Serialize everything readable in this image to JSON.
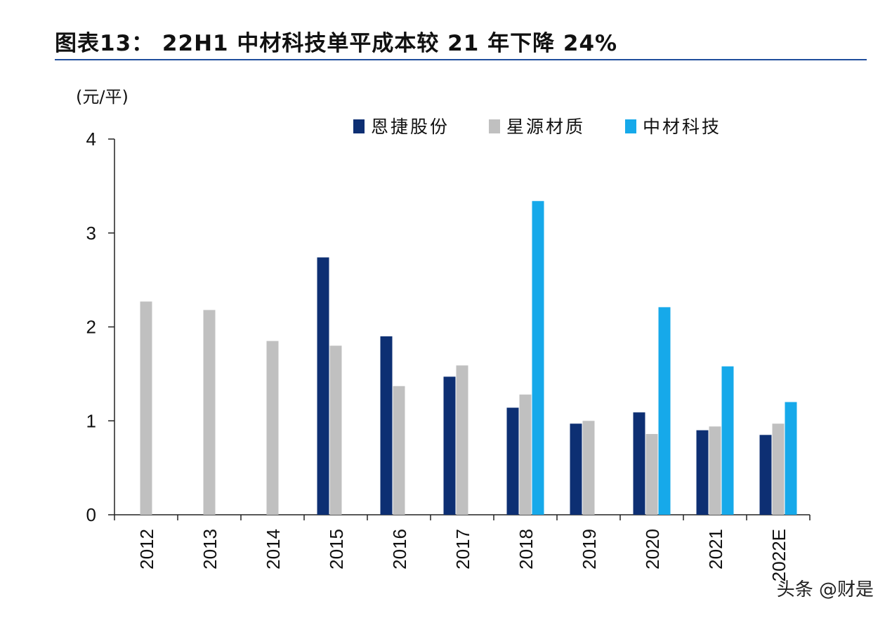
{
  "title": "图表13：  22H1 中材科技单平成本较 21 年下降 24%",
  "watermark": "头条 @财是",
  "chart_data": {
    "type": "bar",
    "unit_label": "(元/平)",
    "categories": [
      "2012",
      "2013",
      "2014",
      "2015",
      "2016",
      "2017",
      "2018",
      "2019",
      "2020",
      "2021",
      "2022E"
    ],
    "ylim": [
      0,
      4
    ],
    "yticks": [
      0,
      1,
      2,
      3,
      4
    ],
    "grid": false,
    "legend_position": "top",
    "series": [
      {
        "name": "恩捷股份",
        "color": "#0d2f73",
        "values": [
          null,
          null,
          null,
          2.74,
          1.9,
          1.47,
          1.14,
          0.97,
          1.09,
          0.9,
          0.85
        ]
      },
      {
        "name": "星源材质",
        "color": "#c0c0c0",
        "values": [
          2.27,
          2.18,
          1.85,
          1.8,
          1.37,
          1.59,
          1.28,
          1.0,
          0.86,
          0.94,
          0.97
        ]
      },
      {
        "name": "中材科技",
        "color": "#16a9ea",
        "values": [
          null,
          null,
          null,
          null,
          null,
          null,
          3.34,
          null,
          2.21,
          1.58,
          1.2
        ]
      }
    ]
  }
}
